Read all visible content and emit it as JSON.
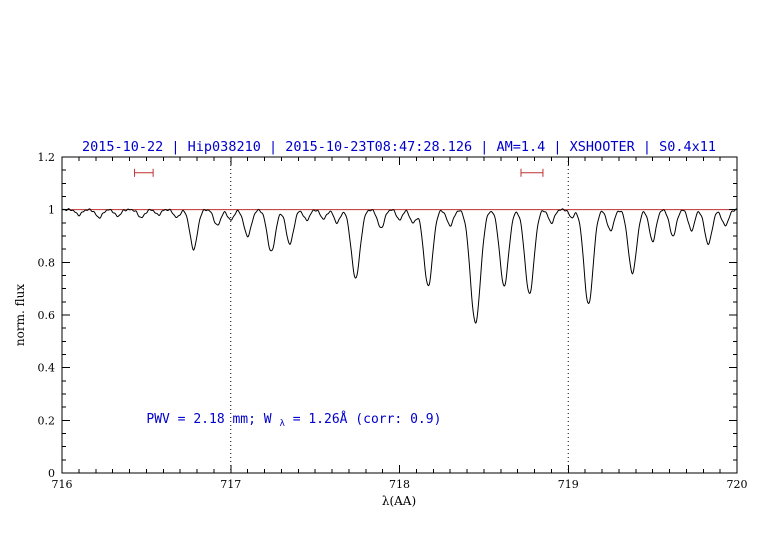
{
  "page": {
    "background": "#ffffff"
  },
  "chart_data": {
    "type": "line",
    "title": "2015-10-22 | Hip038210 | 2015-10-23T08:47:28.126 | AM=1.4 | XSHOOTER | S0.4x11",
    "title_color": "#0000cd",
    "xlabel": "λ(AA)",
    "ylabel": "norm. flux",
    "xlim": [
      716,
      720
    ],
    "ylim": [
      0,
      1.2
    ],
    "x_tick_values": [
      716,
      717,
      718,
      719,
      720
    ],
    "x_tick_labels": [
      "716",
      "717",
      "718",
      "719",
      "720"
    ],
    "x_minor_step": 0.1,
    "y_tick_values": [
      0,
      0.2,
      0.4,
      0.6,
      0.8,
      1,
      1.2
    ],
    "y_tick_labels": [
      "0",
      "0.2",
      "0.4",
      "0.6",
      "0.8",
      "1",
      "1.2"
    ],
    "y_minor_step": 0.05,
    "grid": "off",
    "dotted_vlines": [
      717,
      719
    ],
    "continuum_line": {
      "y": 1.0,
      "color": "#c03030"
    },
    "region_markers": {
      "color": "#c03030",
      "y": 1.14,
      "ranges": [
        [
          716.43,
          716.54
        ],
        [
          718.72,
          718.85
        ]
      ]
    },
    "annotation": {
      "color": "#0000cd",
      "x": 716.5,
      "y": 0.19,
      "prefix": "PWV = 2.18 mm; W",
      "subscript": "λ",
      "suffix": " = 1.26Å (corr: 0.9)"
    },
    "spectrum": {
      "color": "#000000",
      "continuum": 1.0,
      "sample_step": 0.004,
      "noise_amplitude": 0.004,
      "line_columns": [
        "center",
        "depth",
        "sigma"
      ],
      "absorption_lines": [
        [
          716.1,
          0.02,
          0.018
        ],
        [
          716.22,
          0.03,
          0.02
        ],
        [
          716.33,
          0.025,
          0.018
        ],
        [
          716.47,
          0.03,
          0.02
        ],
        [
          716.57,
          0.02,
          0.016
        ],
        [
          716.68,
          0.03,
          0.018
        ],
        [
          716.78,
          0.15,
          0.022
        ],
        [
          716.92,
          0.06,
          0.02
        ],
        [
          717.0,
          0.04,
          0.018
        ],
        [
          717.1,
          0.1,
          0.022
        ],
        [
          717.24,
          0.16,
          0.024
        ],
        [
          717.35,
          0.13,
          0.022
        ],
        [
          717.45,
          0.04,
          0.018
        ],
        [
          717.55,
          0.035,
          0.018
        ],
        [
          717.63,
          0.05,
          0.018
        ],
        [
          717.74,
          0.26,
          0.026
        ],
        [
          717.89,
          0.07,
          0.02
        ],
        [
          718.0,
          0.04,
          0.016
        ],
        [
          718.08,
          0.05,
          0.018
        ],
        [
          718.17,
          0.29,
          0.026
        ],
        [
          718.3,
          0.06,
          0.02
        ],
        [
          718.45,
          0.43,
          0.03
        ],
        [
          718.62,
          0.29,
          0.026
        ],
        [
          718.77,
          0.32,
          0.027
        ],
        [
          718.9,
          0.05,
          0.018
        ],
        [
          719.02,
          0.03,
          0.015
        ],
        [
          719.12,
          0.36,
          0.027
        ],
        [
          719.25,
          0.08,
          0.02
        ],
        [
          719.38,
          0.24,
          0.025
        ],
        [
          719.5,
          0.12,
          0.02
        ],
        [
          719.62,
          0.1,
          0.02
        ],
        [
          719.73,
          0.08,
          0.018
        ],
        [
          719.83,
          0.13,
          0.022
        ],
        [
          719.93,
          0.06,
          0.02
        ]
      ]
    }
  }
}
